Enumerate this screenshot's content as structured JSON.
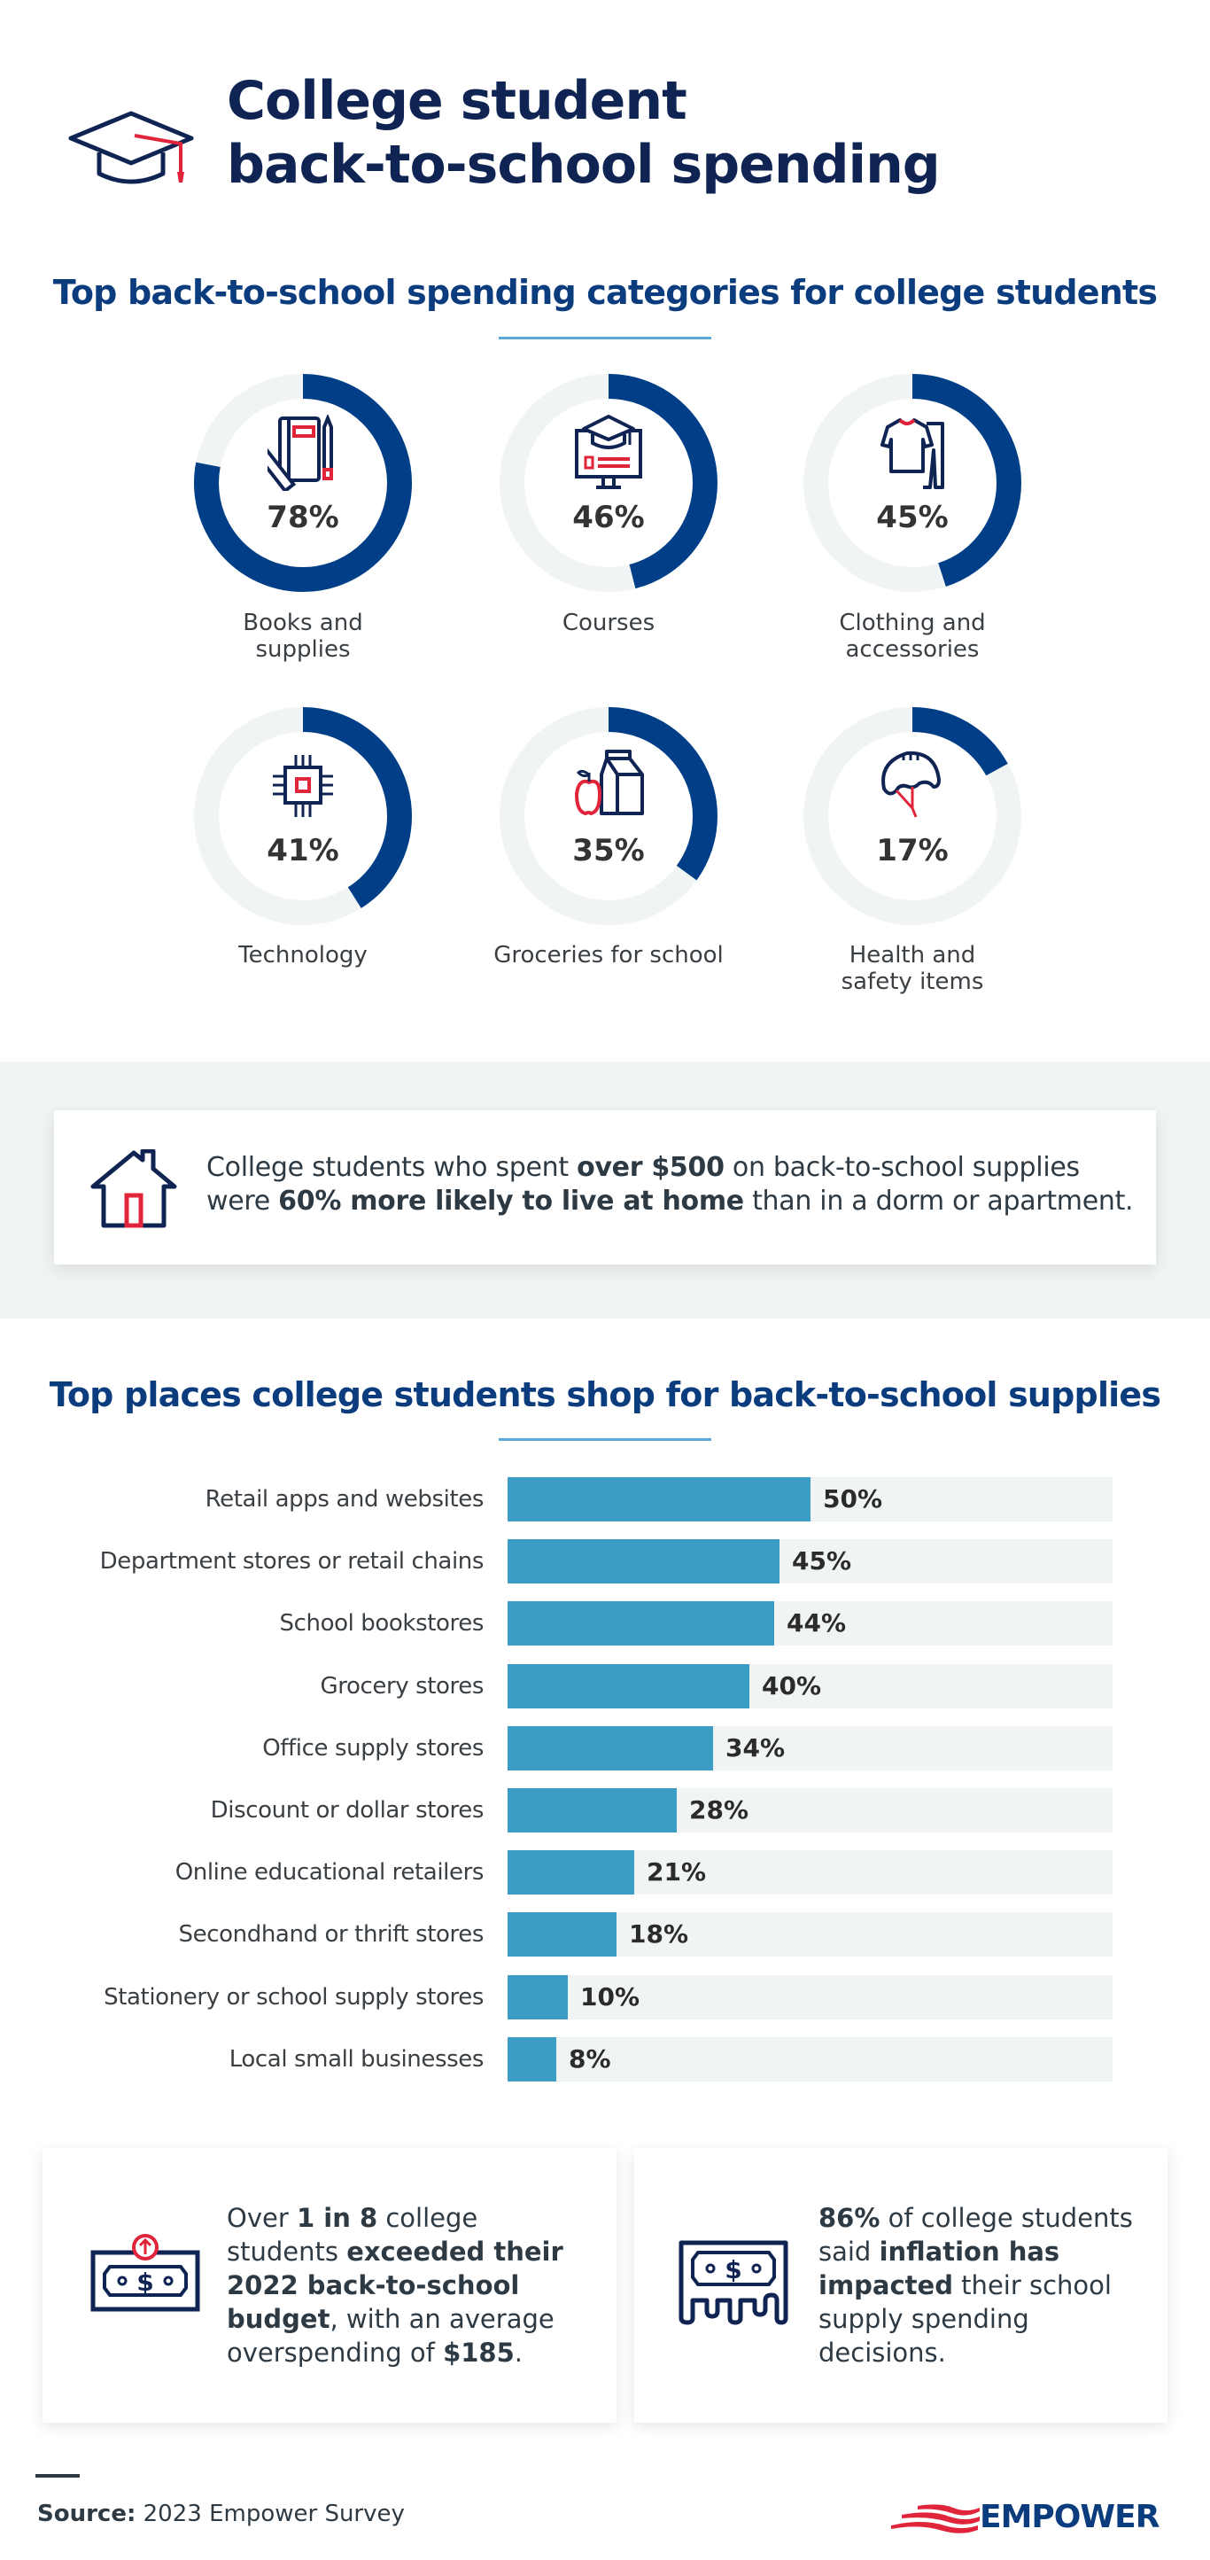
{
  "header": {
    "title_line1": "College student",
    "title_line2": "back-to-school spending",
    "icon": "graduation-cap-icon"
  },
  "categories_section": {
    "title": "Top back-to-school spending categories for college students"
  },
  "shops_section": {
    "title": "Top places college students shop for back-to-school supplies"
  },
  "callout": {
    "icon": "house-icon",
    "parts": [
      "College students who spent ",
      "over $500",
      " on back-to-school supplies were ",
      "60% more likely to live at home",
      " than in a dorm or apartment."
    ]
  },
  "cards": [
    {
      "icon": "dollar-bill-up-arrow-icon",
      "parts": [
        "Over ",
        "1 in 8",
        " college students ",
        "exceeded their 2022 back-to-school budget",
        ", with an average overspending of ",
        "$185",
        "."
      ]
    },
    {
      "icon": "melting-dollar-bill-icon",
      "parts": [
        "86%",
        " of college students said ",
        "inflation has impacted",
        " their school supply spending decisions."
      ]
    }
  ],
  "footer": {
    "source_label": "Source:",
    "source_text": " 2023 Empower Survey",
    "logo_text": "EMPOWER"
  },
  "colors": {
    "navy": "#0f2453",
    "title_blue": "#0b3d7e",
    "donut_fill": "#003f87",
    "donut_track": "#f1f4f5",
    "bar_fill": "#3b9cc6",
    "bar_track": "#f1f4f5",
    "accent_red": "#e0243a"
  },
  "chart_data": [
    {
      "type": "pie",
      "subtype": "donut-progress",
      "title": "Top back-to-school spending categories for college students",
      "categories": [
        "Books and supplies",
        "Courses",
        "Clothing and accessories",
        "Technology",
        "Groceries for school",
        "Health and safety items"
      ],
      "values": [
        78,
        46,
        45,
        41,
        35,
        17
      ],
      "display": [
        "78%",
        "46%",
        "45%",
        "41%",
        "35%",
        "17%"
      ],
      "icons": [
        "notebook-ruler-pencil-icon",
        "monitor-graduation-cap-icon",
        "shirt-pants-icon",
        "microchip-icon",
        "apple-milk-carton-icon",
        "helmet-icon"
      ],
      "unit": "%"
    },
    {
      "type": "bar",
      "orientation": "horizontal",
      "title": "Top places college students shop for back-to-school supplies",
      "categories": [
        "Retail apps and websites",
        "Department stores or retail chains",
        "School bookstores",
        "Grocery stores",
        "Office supply stores",
        "Discount or dollar stores",
        "Online educational retailers",
        "Secondhand or thrift stores",
        "Stationery or school supply stores",
        "Local small businesses"
      ],
      "values": [
        50,
        45,
        44,
        40,
        34,
        28,
        21,
        18,
        10,
        8
      ],
      "display": [
        "50%",
        "45%",
        "44%",
        "40%",
        "34%",
        "28%",
        "21%",
        "18%",
        "10%",
        "8%"
      ],
      "xlim": [
        0,
        100
      ],
      "grid": false,
      "legend": "none"
    }
  ]
}
